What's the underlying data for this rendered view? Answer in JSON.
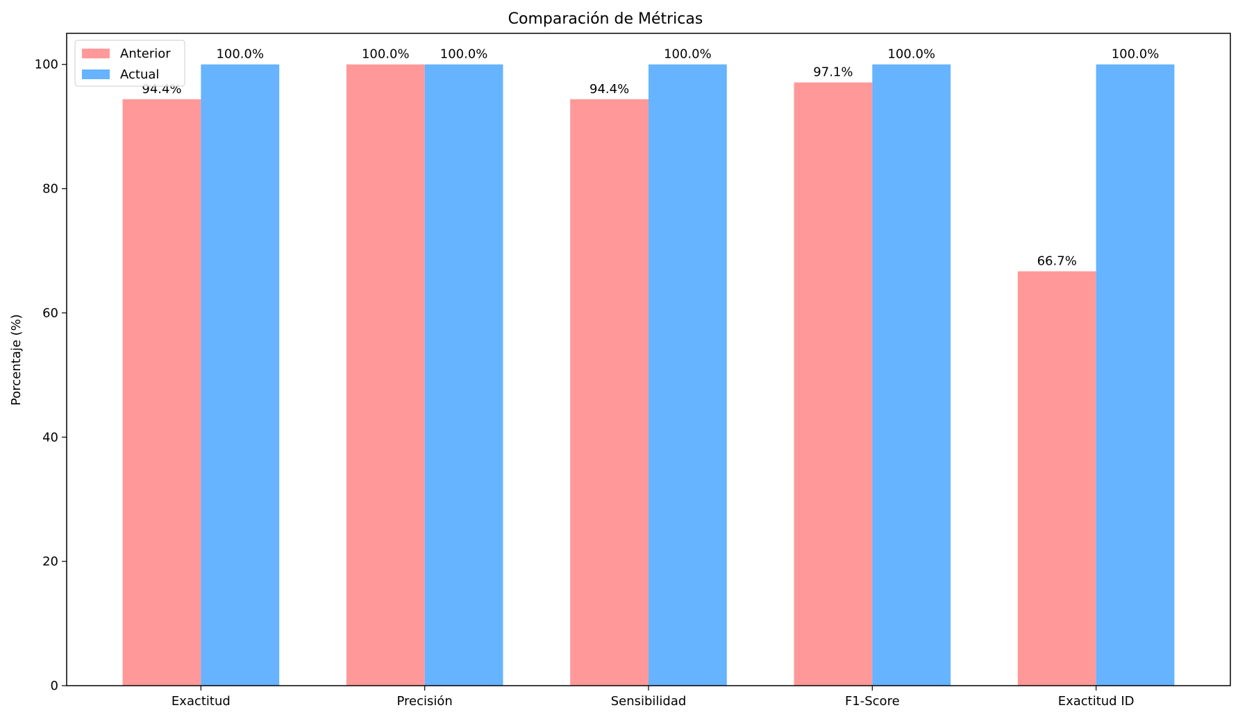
{
  "chart_data": {
    "type": "bar",
    "title": "Comparación de Métricas",
    "xlabel": "",
    "ylabel": "Porcentaje (%)",
    "categories": [
      "Exactitud",
      "Precisión",
      "Sensibilidad",
      "F1-Score",
      "Exactitud ID"
    ],
    "series": [
      {
        "name": "Anterior",
        "color": "#ff9999",
        "values": [
          94.4,
          100.0,
          94.4,
          97.1,
          66.7
        ],
        "labels": [
          "94.4%",
          "100.0%",
          "94.4%",
          "97.1%",
          "66.7%"
        ]
      },
      {
        "name": "Actual",
        "color": "#66b3ff",
        "values": [
          100.0,
          100.0,
          100.0,
          100.0,
          100.0
        ],
        "labels": [
          "100.0%",
          "100.0%",
          "100.0%",
          "100.0%",
          "100.0%"
        ]
      }
    ],
    "ylim": [
      0,
      105
    ],
    "yticks": [
      0,
      20,
      40,
      60,
      80,
      100
    ],
    "grid": false,
    "legend_position": "top-left"
  }
}
